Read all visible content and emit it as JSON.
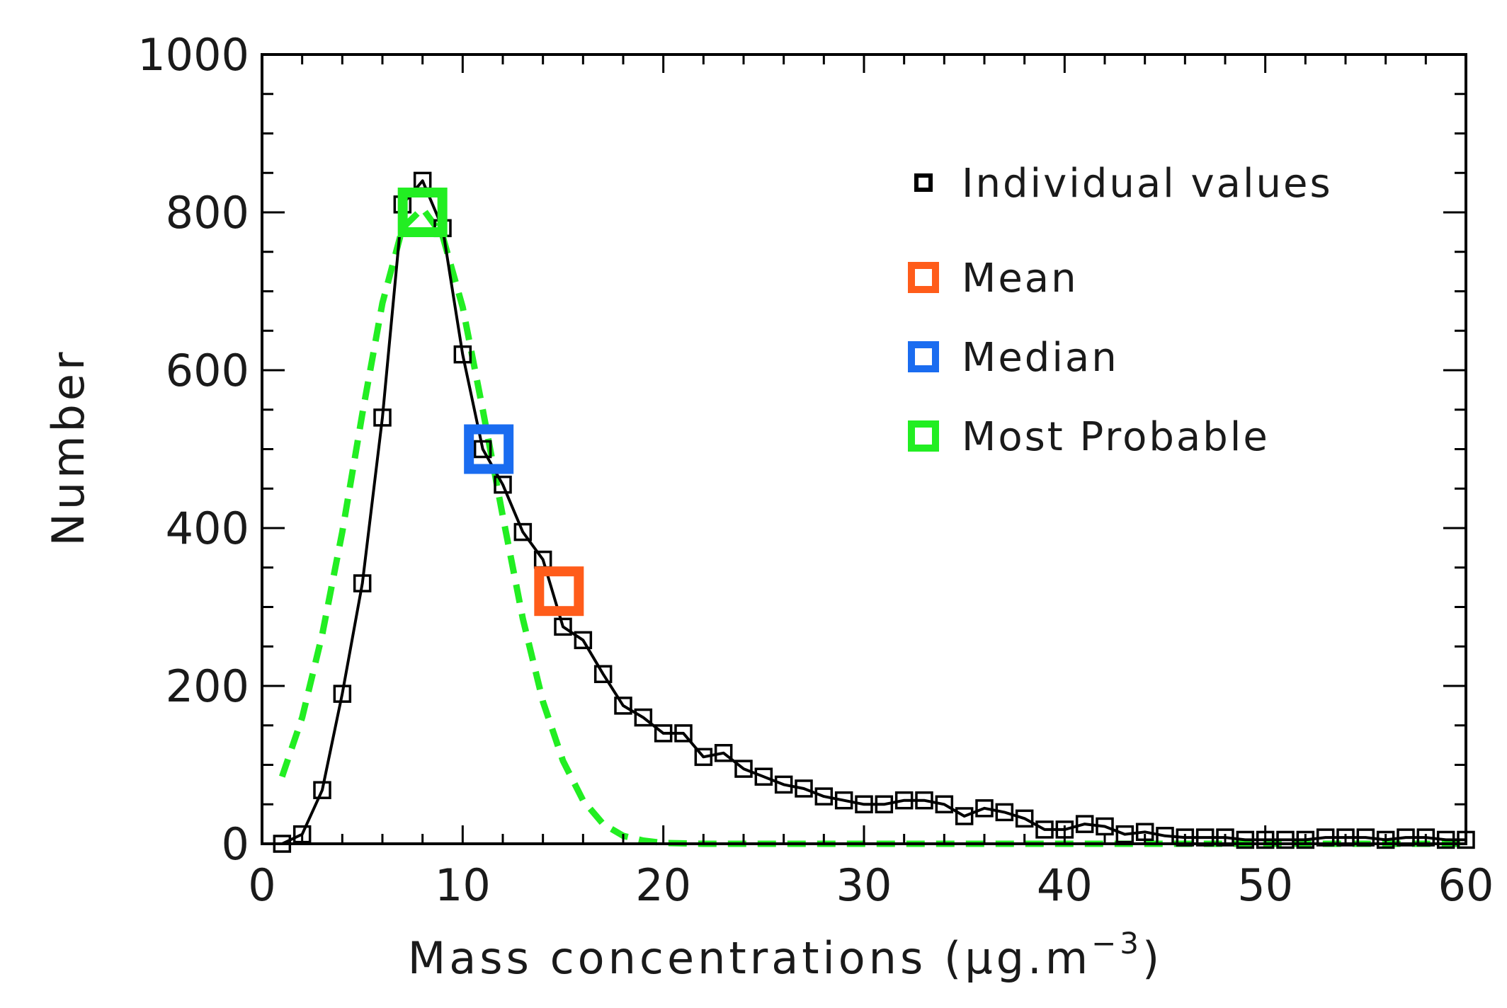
{
  "chart_data": {
    "type": "line",
    "title": "",
    "xlabel": "Mass concentrations (",
    "xlabel_unit_base": "μg.m",
    "xlabel_unit_exp": "−3",
    "xlabel_close": ")",
    "ylabel": "Number",
    "xlim": [
      0,
      60
    ],
    "ylim": [
      0,
      1000
    ],
    "x_ticks": [
      "0",
      "10",
      "20",
      "30",
      "40",
      "50",
      "60"
    ],
    "y_ticks": [
      "0",
      "200",
      "400",
      "600",
      "800",
      "1000"
    ],
    "grid": false,
    "legend_position": "top-right",
    "series": [
      {
        "name": "Individual values",
        "color": "#000000",
        "style": "solid-with-square-markers",
        "x": [
          1,
          2,
          3,
          4,
          5,
          6,
          7,
          8,
          9,
          10,
          11,
          12,
          13,
          14,
          15,
          16,
          17,
          18,
          19,
          20,
          21,
          22,
          23,
          24,
          25,
          26,
          27,
          28,
          29,
          30,
          31,
          32,
          33,
          34,
          35,
          36,
          37,
          38,
          39,
          40,
          41,
          42,
          43,
          44,
          45,
          46,
          47,
          48,
          49,
          50,
          51,
          52,
          53,
          54,
          55,
          56,
          57,
          58,
          59,
          60
        ],
        "y": [
          0,
          12,
          68,
          190,
          330,
          540,
          810,
          840,
          780,
          620,
          500,
          455,
          395,
          360,
          275,
          258,
          215,
          175,
          160,
          140,
          140,
          110,
          115,
          95,
          85,
          75,
          70,
          60,
          55,
          50,
          50,
          55,
          55,
          50,
          35,
          45,
          40,
          32,
          18,
          18,
          25,
          22,
          12,
          15,
          10,
          8,
          8,
          8,
          5,
          5,
          5,
          5,
          8,
          8,
          8,
          5,
          8,
          8,
          5,
          5
        ]
      },
      {
        "name": "Most Probable fit",
        "color": "#22ee22",
        "style": "dashed",
        "x": [
          1,
          2,
          3,
          4,
          5,
          6,
          7,
          8,
          9,
          10,
          11,
          12,
          13,
          14,
          15,
          16,
          17,
          18,
          19,
          20,
          22,
          25,
          30,
          35,
          40,
          45,
          50,
          55,
          60
        ],
        "y": [
          85,
          160,
          265,
          395,
          545,
          685,
          780,
          805,
          770,
          680,
          550,
          415,
          285,
          180,
          105,
          55,
          25,
          10,
          4,
          1,
          0,
          0,
          0,
          0,
          0,
          0,
          0,
          0,
          0
        ]
      }
    ],
    "statistics": [
      {
        "name": "Mean",
        "x": 14.8,
        "y": 320,
        "color": "#ff5c1a"
      },
      {
        "name": "Median",
        "x": 11.3,
        "y": 500,
        "color": "#1a6cf0"
      },
      {
        "name": "Most Probable",
        "x": 8.0,
        "y": 800,
        "color": "#22ee22"
      }
    ],
    "legend": [
      {
        "label": "Individual values",
        "color": "#000000"
      },
      {
        "label": "Mean",
        "color": "#ff5c1a"
      },
      {
        "label": "Median",
        "color": "#1a6cf0"
      },
      {
        "label": "Most Probable",
        "color": "#22ee22"
      }
    ]
  }
}
